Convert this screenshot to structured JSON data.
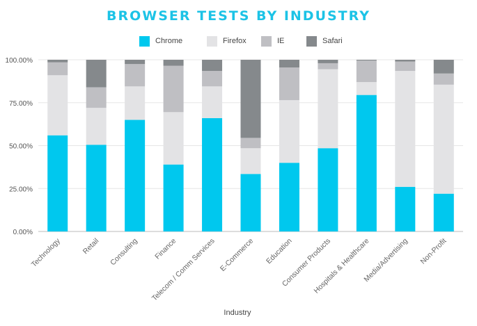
{
  "chart_data": {
    "type": "bar",
    "stacked": true,
    "title": "BROWSER TESTS BY INDUSTRY",
    "xlabel": "Industry",
    "ylabel": "",
    "ylim": [
      0,
      100
    ],
    "yticks": [
      "0.00%",
      "25.00%",
      "50.00%",
      "75.00%",
      "100.00%"
    ],
    "grid": true,
    "legend_position": "top-center",
    "categories": [
      "Technology",
      "Retail",
      "Consulting",
      "Finance",
      "Telecom / Comm Services",
      "E-Commerce",
      "Education",
      "Consumer Products",
      "Hospitals & Healthcare",
      "Media/Advertising",
      "Non-Profit"
    ],
    "series": [
      {
        "name": "Chrome",
        "color": "#00c8ee",
        "values": [
          56,
          50.5,
          65,
          39,
          66,
          33.5,
          40,
          48.5,
          79.5,
          26,
          22
        ]
      },
      {
        "name": "Firefox",
        "color": "#e3e3e5",
        "values": [
          35,
          21.5,
          19.5,
          30.5,
          18.5,
          15,
          36.5,
          46,
          7.5,
          67.5,
          63.5
        ]
      },
      {
        "name": "IE",
        "color": "#bfbfc3",
        "values": [
          7.5,
          12,
          13,
          27,
          9,
          6,
          19,
          3.5,
          12.5,
          5.5,
          6.5
        ]
      },
      {
        "name": "Safari",
        "color": "#85898c",
        "values": [
          1.5,
          16,
          2.5,
          3.5,
          6.5,
          45.5,
          4.5,
          2,
          0.5,
          1,
          8
        ]
      }
    ]
  }
}
